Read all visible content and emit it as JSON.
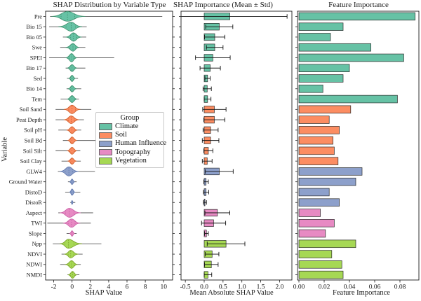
{
  "legend": {
    "title": "Group",
    "entries": [
      {
        "label": "Climate",
        "color": "#66c2a5"
      },
      {
        "label": "Soil",
        "color": "#fc8d62"
      },
      {
        "label": "Human Influence",
        "color": "#8da0cb"
      },
      {
        "label": "Topography",
        "color": "#e78ac3"
      },
      {
        "label": "Vegetation",
        "color": "#a6d854"
      }
    ]
  },
  "colors": {
    "fill": {
      "Climate": "#66c2a5",
      "Soil": "#fc8d62",
      "Human Influence": "#8da0cb",
      "Topography": "#e78ac3",
      "Vegetation": "#a6d854"
    },
    "edge": {
      "Climate": "#3f8f6c",
      "Soil": "#cf5f2c",
      "Human Influence": "#5f77ad",
      "Topography": "#c75ba2",
      "Vegetation": "#7da32c"
    },
    "frame": "#1a1a1a",
    "whisker": "#555555",
    "bar_edge": "#2b2b2b"
  },
  "chart_data": [
    {
      "type": "violin",
      "title": "SHAP Distribution by Variable Type",
      "xlabel": "SHAP Value",
      "ylabel": "Variable",
      "xticks": [
        -2,
        0,
        2,
        4,
        6,
        8,
        10
      ],
      "xlim": [
        -2.95,
        11.0
      ],
      "legend_position": "center-right-inside",
      "grid": false,
      "categories": [
        "Pre",
        "Bio 15",
        "Bio 05",
        "Swe",
        "SPEI",
        "Bio 17",
        "Sed",
        "Bio 14",
        "Tem",
        "Soil Sand",
        "Peat Depth",
        "Soil pH",
        "Soil Bd",
        "Soil Silt",
        "Soil Clay",
        "GLW4",
        "Ground Water",
        "DistoD",
        "DistoR",
        "Aspect",
        "TWI",
        "Slope",
        "Npp",
        "NDVI",
        "NDWI",
        "NMDI"
      ],
      "groups": [
        "Climate",
        "Climate",
        "Climate",
        "Climate",
        "Climate",
        "Climate",
        "Climate",
        "Climate",
        "Climate",
        "Soil",
        "Soil",
        "Soil",
        "Soil",
        "Soil",
        "Soil",
        "Human Influence",
        "Human Influence",
        "Human Influence",
        "Human Influence",
        "Topography",
        "Topography",
        "Topography",
        "Vegetation",
        "Vegetation",
        "Vegetation",
        "Vegetation"
      ],
      "violins": [
        {
          "range": [
            -2.4,
            9.85
          ],
          "bulge": [
            -2.25,
            1.45
          ],
          "peak": -0.5,
          "hh": 7
        },
        {
          "range": [
            -2.5,
            1.6
          ],
          "bulge": [
            -1.5,
            1.1
          ],
          "peak": -0.1,
          "hh": 6.5
        },
        {
          "range": [
            -1.0,
            1.55
          ],
          "bulge": [
            -0.7,
            1.05
          ],
          "peak": 0.15,
          "hh": 6
        },
        {
          "range": [
            -1.3,
            1.45
          ],
          "bulge": [
            -0.7,
            0.8
          ],
          "peak": 0.1,
          "hh": 5.5
        },
        {
          "range": [
            -2.5,
            4.6
          ],
          "bulge": [
            -0.7,
            0.55
          ],
          "peak": -0.05,
          "hh": 6
        },
        {
          "range": [
            -0.7,
            1.45
          ],
          "bulge": [
            -0.55,
            0.55
          ],
          "peak": 0,
          "hh": 5
        },
        {
          "range": [
            -0.55,
            0.65
          ],
          "bulge": [
            -0.4,
            0.4
          ],
          "peak": 0,
          "hh": 4.5
        },
        {
          "range": [
            -0.6,
            1.0
          ],
          "bulge": [
            -0.45,
            0.5
          ],
          "peak": 0,
          "hh": 4.5
        },
        {
          "range": [
            -1.25,
            0.75
          ],
          "bulge": [
            -0.55,
            0.55
          ],
          "peak": 0,
          "hh": 5
        },
        {
          "range": [
            -1.8,
            2.1
          ],
          "bulge": [
            -0.9,
            0.9
          ],
          "peak": 0,
          "hh": 6
        },
        {
          "range": [
            -1.8,
            1.3
          ],
          "bulge": [
            -0.9,
            0.8
          ],
          "peak": -0.1,
          "hh": 5.5
        },
        {
          "range": [
            -1.5,
            1.0
          ],
          "bulge": [
            -0.6,
            0.6
          ],
          "peak": 0,
          "hh": 5
        },
        {
          "range": [
            -1.0,
            2.6
          ],
          "bulge": [
            -0.5,
            0.55
          ],
          "peak": 0,
          "hh": 5
        },
        {
          "range": [
            -1.8,
            0.9
          ],
          "bulge": [
            -0.55,
            0.55
          ],
          "peak": 0,
          "hh": 5
        },
        {
          "range": [
            -1.15,
            0.95
          ],
          "bulge": [
            -0.5,
            0.5
          ],
          "peak": 0,
          "hh": 4.5
        },
        {
          "range": [
            -1.55,
            2.5
          ],
          "bulge": [
            -1.35,
            0.7
          ],
          "peak": -0.35,
          "hh": 6.5
        },
        {
          "range": [
            -0.45,
            0.5
          ],
          "bulge": [
            -0.3,
            0.3
          ],
          "peak": 0,
          "hh": 4
        },
        {
          "range": [
            -0.75,
            0.9
          ],
          "bulge": [
            -0.3,
            0.35
          ],
          "peak": 0,
          "hh": 4.5
        },
        {
          "range": [
            -0.2,
            0.35
          ],
          "bulge": [
            -0.12,
            0.15
          ],
          "peak": 0,
          "hh": 3
        },
        {
          "range": [
            -1.5,
            2.3
          ],
          "bulge": [
            -1.35,
            0.95
          ],
          "peak": -0.3,
          "hh": 6.5
        },
        {
          "range": [
            -2.7,
            2.05
          ],
          "bulge": [
            -1.0,
            0.9
          ],
          "peak": -0.05,
          "hh": 6
        },
        {
          "range": [
            -0.6,
            0.5
          ],
          "bulge": [
            -0.3,
            0.3
          ],
          "peak": 0,
          "hh": 4
        },
        {
          "range": [
            -2.1,
            3.2
          ],
          "bulge": [
            -1.35,
            1.1
          ],
          "peak": -0.4,
          "hh": 6.5
        },
        {
          "range": [
            -1.15,
            1.15
          ],
          "bulge": [
            -0.85,
            0.7
          ],
          "peak": -0.15,
          "hh": 5.5
        },
        {
          "range": [
            -1.3,
            0.95
          ],
          "bulge": [
            -0.75,
            0.6
          ],
          "peak": -0.05,
          "hh": 5.5
        },
        {
          "range": [
            -0.5,
            0.8
          ],
          "bulge": [
            -0.45,
            0.55
          ],
          "peak": 0.05,
          "hh": 5
        }
      ]
    },
    {
      "type": "bar",
      "title": "SHAP Importance (Mean ± Std)",
      "xlabel": "Mean Absolute SHAP Value",
      "xticks": [
        -0.5,
        0.0,
        0.5,
        1.0,
        1.5,
        2.0
      ],
      "xtick_labels": [
        "-0.5",
        "0.0",
        "0.5",
        "1.0",
        "1.5",
        "2.0"
      ],
      "xlim": [
        -0.62,
        2.33
      ],
      "error_bars": true,
      "grid": false,
      "categories": [
        "Pre",
        "Bio 15",
        "Bio 05",
        "Swe",
        "SPEI",
        "Bio 17",
        "Sed",
        "Bio 14",
        "Tem",
        "Soil Sand",
        "Peat Depth",
        "Soil pH",
        "Soil Bd",
        "Soil Silt",
        "Soil Clay",
        "GLW4",
        "Ground Water",
        "DistoD",
        "DistoR",
        "Aspect",
        "TWI",
        "Slope",
        "Npp",
        "NDVI",
        "NDWI",
        "NMDI"
      ],
      "values": [
        0.68,
        0.4,
        0.28,
        0.28,
        0.23,
        0.16,
        0.09,
        0.08,
        0.09,
        0.27,
        0.27,
        0.17,
        0.17,
        0.11,
        0.08,
        0.4,
        0.05,
        0.05,
        0.02,
        0.35,
        0.25,
        0.06,
        0.58,
        0.21,
        0.19,
        0.1
      ],
      "std": [
        1.52,
        0.36,
        0.27,
        0.22,
        0.46,
        0.27,
        0.07,
        0.11,
        0.09,
        0.31,
        0.28,
        0.2,
        0.22,
        0.12,
        0.13,
        0.37,
        0.06,
        0.07,
        0.04,
        0.33,
        0.32,
        0.05,
        0.5,
        0.18,
        0.18,
        0.1
      ]
    },
    {
      "type": "bar",
      "title": "Feature Importance",
      "xlabel": "Feature Importance",
      "xticks": [
        0.0,
        0.02,
        0.04,
        0.06,
        0.08
      ],
      "xtick_labels": [
        "0.00",
        "0.02",
        "0.04",
        "0.06",
        "0.08"
      ],
      "xlim": [
        0,
        0.095
      ],
      "grid": false,
      "categories": [
        "Pre",
        "Bio 15",
        "Bio 05",
        "Swe",
        "SPEI",
        "Bio 17",
        "Sed",
        "Bio 14",
        "Tem",
        "Soil Sand",
        "Peat Depth",
        "Soil pH",
        "Soil Bd",
        "Soil Silt",
        "Soil Clay",
        "GLW4",
        "Ground Water",
        "DistoD",
        "DistoR",
        "Aspect",
        "TWI",
        "Slope",
        "Npp",
        "NDVI",
        "NDWI",
        "NMDI"
      ],
      "values": [
        0.092,
        0.035,
        0.025,
        0.057,
        0.083,
        0.04,
        0.035,
        0.019,
        0.078,
        0.041,
        0.024,
        0.032,
        0.027,
        0.028,
        0.031,
        0.05,
        0.045,
        0.024,
        0.032,
        0.017,
        0.028,
        0.021,
        0.045,
        0.026,
        0.034,
        0.035
      ]
    }
  ]
}
